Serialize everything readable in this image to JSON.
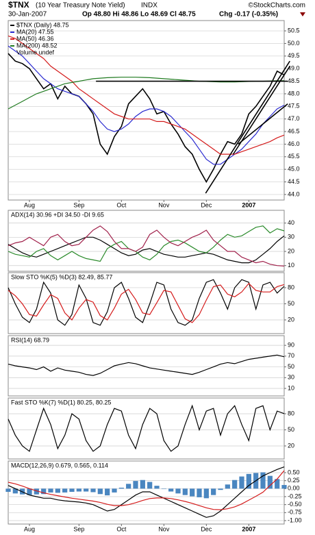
{
  "header": {
    "symbol": "$TNX",
    "description": "(10 Year Treasury Note Yield)",
    "exchange": "INDX",
    "credit": "©StockCharts.com",
    "date": "30-Jan-2007",
    "ohlc": "Op 48.80 Hi 48.86 Lo 48.69 Cl 48.75",
    "change": "Chg -0.17 (-0.35%)"
  },
  "chart_data": [
    {
      "type": "line",
      "volume_label": "Volume undef",
      "categories": [
        null,
        null,
        null,
        "Aug",
        null,
        null,
        null,
        null,
        null,
        null,
        "Sep",
        null,
        null,
        null,
        null,
        null,
        "Oct",
        null,
        null,
        null,
        null,
        null,
        "Nov",
        null,
        null,
        null,
        null,
        null,
        "Dec",
        null,
        null,
        null,
        null,
        null,
        "2007",
        null,
        null,
        null,
        null,
        null
      ],
      "ylim": [
        43.78,
        50.91
      ],
      "yticks": [
        {
          "value": 44,
          "label": "44.0"
        },
        44.5,
        {
          "value": 45,
          "label": "45.0"
        },
        45.5,
        {
          "value": 46,
          "label": "46.0"
        },
        46.5,
        {
          "value": 47,
          "label": "47.0"
        },
        47.5,
        {
          "value": 48,
          "label": "48.0"
        },
        48.5,
        {
          "value": 49,
          "label": "49.0"
        },
        49.5,
        {
          "value": 50,
          "label": "50.0"
        },
        50.5
      ],
      "series": [
        {
          "name": "$TNX (Daily) 48.75",
          "color": "#000000",
          "values": [
            49.6,
            49.3,
            49.2,
            49.0,
            48.6,
            48.2,
            48.4,
            47.8,
            48.3,
            48.0,
            47.9,
            47.6,
            47.2,
            46.0,
            45.6,
            46.3,
            46.7,
            47.6,
            47.9,
            48.2,
            47.8,
            47.2,
            47.3,
            46.8,
            46.4,
            45.9,
            45.6,
            45.0,
            44.5,
            45.0,
            45.6,
            46.1,
            46.0,
            46.4,
            47.2,
            47.5,
            47.9,
            48.3,
            48.9,
            48.75
          ]
        },
        {
          "name": "MA(20) 47.55",
          "color": "#2a2ad0",
          "values": [
            49.9,
            49.7,
            49.5,
            49.2,
            48.9,
            48.6,
            48.4,
            48.2,
            48.1,
            48.0,
            47.9,
            47.6,
            47.3,
            46.9,
            46.6,
            46.5,
            46.6,
            46.8,
            47.1,
            47.3,
            47.4,
            47.4,
            47.3,
            47.1,
            46.8,
            46.5,
            46.2,
            45.8,
            45.4,
            45.2,
            45.2,
            45.4,
            45.6,
            45.8,
            46.1,
            46.4,
            46.8,
            47.1,
            47.4,
            47.55
          ]
        },
        {
          "name": "MA(50) 46.36",
          "color": "#d41a1a",
          "values": [
            50.3,
            50.2,
            50.0,
            49.8,
            49.6,
            49.4,
            49.1,
            48.9,
            48.7,
            48.5,
            48.2,
            48.0,
            47.8,
            47.6,
            47.4,
            47.2,
            47.1,
            47.0,
            47.0,
            47.0,
            47.0,
            46.9,
            46.9,
            46.8,
            46.7,
            46.6,
            46.4,
            46.2,
            46.0,
            45.8,
            45.6,
            45.6,
            45.6,
            45.7,
            45.8,
            45.9,
            46.0,
            46.1,
            46.25,
            46.36
          ]
        },
        {
          "name": "MA(200) 48.52",
          "color": "#1f7a1f",
          "values": [
            47.4,
            47.55,
            47.7,
            47.85,
            48.0,
            48.1,
            48.2,
            48.3,
            48.4,
            48.45,
            48.5,
            48.55,
            48.6,
            48.62,
            48.64,
            48.65,
            48.66,
            48.66,
            48.66,
            48.65,
            48.64,
            48.62,
            48.6,
            48.58,
            48.56,
            48.54,
            48.52,
            48.5,
            48.49,
            48.48,
            48.47,
            48.47,
            48.47,
            48.48,
            48.49,
            48.5,
            48.5,
            48.51,
            48.52,
            48.52
          ]
        }
      ],
      "trendlines": [
        {
          "x": [
            12.4,
            39.5
          ],
          "y": [
            48.5,
            48.5
          ]
        },
        {
          "x": [
            27.9,
            39.8
          ],
          "y": [
            44.05,
            49.3
          ]
        },
        {
          "x": [
            31.8,
            39.8
          ],
          "y": [
            45.6,
            49.1
          ]
        },
        {
          "x": [
            32.5,
            39.5
          ],
          "y": [
            46.0,
            47.6
          ]
        }
      ]
    },
    {
      "type": "line",
      "title": "ADX(14) 30.96 +DI 34.50 -DI 9.65",
      "ylim": [
        6,
        49
      ],
      "yticks": [
        10,
        20,
        30,
        40
      ],
      "series": [
        {
          "color": "#000000",
          "values": [
            25,
            22,
            19,
            17,
            16,
            18,
            20,
            22,
            24,
            26,
            28,
            30,
            30,
            28,
            25,
            22,
            19,
            17,
            18,
            21,
            22,
            20,
            18,
            17,
            16,
            16,
            17,
            18,
            19,
            18,
            16,
            14,
            13,
            12,
            12,
            14,
            18,
            22,
            27,
            30.96
          ]
        },
        {
          "color": "#2a8a2a",
          "values": [
            20,
            18,
            17,
            16,
            20,
            22,
            17,
            14,
            17,
            20,
            17,
            15,
            14,
            13,
            22,
            25,
            27,
            22,
            20,
            16,
            14,
            18,
            24,
            27,
            28,
            26,
            23,
            20,
            19,
            23,
            28,
            32,
            30,
            31,
            34,
            37,
            38,
            33,
            36,
            34.5
          ]
        },
        {
          "color": "#a0204a",
          "values": [
            24,
            26,
            27,
            30,
            27,
            24,
            30,
            32,
            27,
            24,
            25,
            30,
            35,
            38,
            34,
            27,
            22,
            22,
            20,
            23,
            32,
            35,
            30,
            26,
            24,
            27,
            30,
            32,
            35,
            28,
            24,
            20,
            20,
            16,
            14,
            12,
            13,
            11,
            10,
            9.65
          ]
        }
      ]
    },
    {
      "type": "line",
      "title": "Slow STO %K(5) %D(3) 82.49, 85.77",
      "ylim": [
        -5.5,
        108
      ],
      "yticks": [
        20,
        50,
        80
      ],
      "series": [
        {
          "color": "#000000",
          "values": [
            80,
            50,
            25,
            15,
            40,
            90,
            70,
            20,
            10,
            30,
            85,
            60,
            15,
            10,
            35,
            80,
            90,
            60,
            25,
            15,
            50,
            90,
            85,
            40,
            15,
            10,
            20,
            60,
            90,
            95,
            70,
            40,
            80,
            95,
            90,
            40,
            85,
            90,
            70,
            82.49
          ]
        },
        {
          "color": "#d41a1a",
          "values": [
            75,
            65,
            50,
            30,
            27,
            48,
            67,
            60,
            33,
            20,
            42,
            58,
            53,
            28,
            20,
            42,
            68,
            77,
            58,
            33,
            30,
            52,
            75,
            72,
            47,
            22,
            15,
            30,
            57,
            82,
            85,
            68,
            63,
            72,
            88,
            75,
            72,
            72,
            82,
            85.77
          ]
        }
      ]
    },
    {
      "type": "line",
      "title": "RSI(14) 68.79",
      "ylim": [
        -4,
        108
      ],
      "yticks": [
        10,
        30,
        50,
        70,
        90
      ],
      "series": [
        {
          "color": "#000000",
          "values": [
            55,
            52,
            50,
            48,
            45,
            50,
            42,
            48,
            44,
            42,
            40,
            36,
            34,
            38,
            45,
            52,
            55,
            58,
            56,
            52,
            48,
            46,
            44,
            42,
            40,
            38,
            36,
            40,
            45,
            50,
            55,
            58,
            56,
            60,
            64,
            66,
            68,
            70,
            72,
            68.79
          ]
        }
      ]
    },
    {
      "type": "line",
      "title": "Fast STO %K(7) %D(1) 80.25, 80.25",
      "ylim": [
        -4.3,
        109.4
      ],
      "yticks": [
        20,
        50,
        80
      ],
      "series": [
        {
          "color": "#000000",
          "values": [
            70,
            40,
            20,
            10,
            50,
            90,
            60,
            15,
            40,
            80,
            70,
            30,
            10,
            20,
            60,
            90,
            85,
            40,
            15,
            60,
            90,
            80,
            30,
            10,
            20,
            60,
            95,
            50,
            85,
            90,
            40,
            80,
            95,
            60,
            30,
            90,
            95,
            50,
            85,
            80.25
          ]
        }
      ]
    },
    {
      "type": "line",
      "title": "MACD(12,26,9) 0.679, 0.565, 0.114",
      "categories": [
        null,
        null,
        null,
        "Aug",
        null,
        null,
        null,
        null,
        null,
        null,
        "Sep",
        null,
        null,
        null,
        null,
        null,
        "Oct",
        null,
        null,
        null,
        null,
        null,
        "Nov",
        null,
        null,
        null,
        null,
        null,
        "Dec",
        null,
        null,
        null,
        null,
        null,
        "2007",
        null,
        null,
        null,
        null,
        null
      ],
      "ylim": [
        -1.107,
        0.864
      ],
      "yticks": [
        {
          "value": -1,
          "label": "-1.00"
        },
        -0.75,
        {
          "value": -0.5,
          "label": "-0.50"
        },
        -0.25,
        {
          "value": 0,
          "label": "0.00"
        },
        0.25,
        {
          "value": 0.5,
          "label": "0.50"
        }
      ],
      "series": [
        {
          "type": "bar",
          "color": "#4a86c0",
          "values": [
            -0.1,
            -0.15,
            -0.18,
            -0.2,
            -0.18,
            -0.17,
            -0.12,
            -0.13,
            -0.12,
            -0.1,
            -0.09,
            -0.09,
            -0.11,
            -0.17,
            -0.21,
            -0.12,
            0.03,
            0.15,
            0.24,
            0.27,
            0.21,
            0.09,
            -0.01,
            -0.09,
            -0.15,
            -0.2,
            -0.24,
            -0.27,
            -0.3,
            -0.2,
            -0.04,
            0.13,
            0.27,
            0.38,
            0.46,
            0.49,
            0.51,
            0.4,
            0.3,
            0.114
          ]
        },
        {
          "color": "#000000",
          "values": [
            0.1,
            0.0,
            -0.1,
            -0.2,
            -0.25,
            -0.3,
            -0.3,
            -0.35,
            -0.38,
            -0.4,
            -0.42,
            -0.45,
            -0.5,
            -0.6,
            -0.7,
            -0.65,
            -0.5,
            -0.35,
            -0.2,
            -0.1,
            -0.1,
            -0.2,
            -0.3,
            -0.4,
            -0.5,
            -0.6,
            -0.7,
            -0.8,
            -0.9,
            -0.85,
            -0.7,
            -0.5,
            -0.3,
            -0.1,
            0.1,
            0.25,
            0.4,
            0.5,
            0.6,
            0.679
          ]
        },
        {
          "color": "#d41a1a",
          "values": [
            0.2,
            0.15,
            0.08,
            0.0,
            -0.07,
            -0.13,
            -0.18,
            -0.22,
            -0.26,
            -0.3,
            -0.33,
            -0.36,
            -0.39,
            -0.43,
            -0.49,
            -0.53,
            -0.53,
            -0.5,
            -0.44,
            -0.37,
            -0.31,
            -0.29,
            -0.29,
            -0.31,
            -0.35,
            -0.4,
            -0.46,
            -0.53,
            -0.6,
            -0.65,
            -0.66,
            -0.63,
            -0.57,
            -0.48,
            -0.36,
            -0.24,
            -0.11,
            0.1,
            0.3,
            0.565
          ]
        }
      ]
    }
  ]
}
